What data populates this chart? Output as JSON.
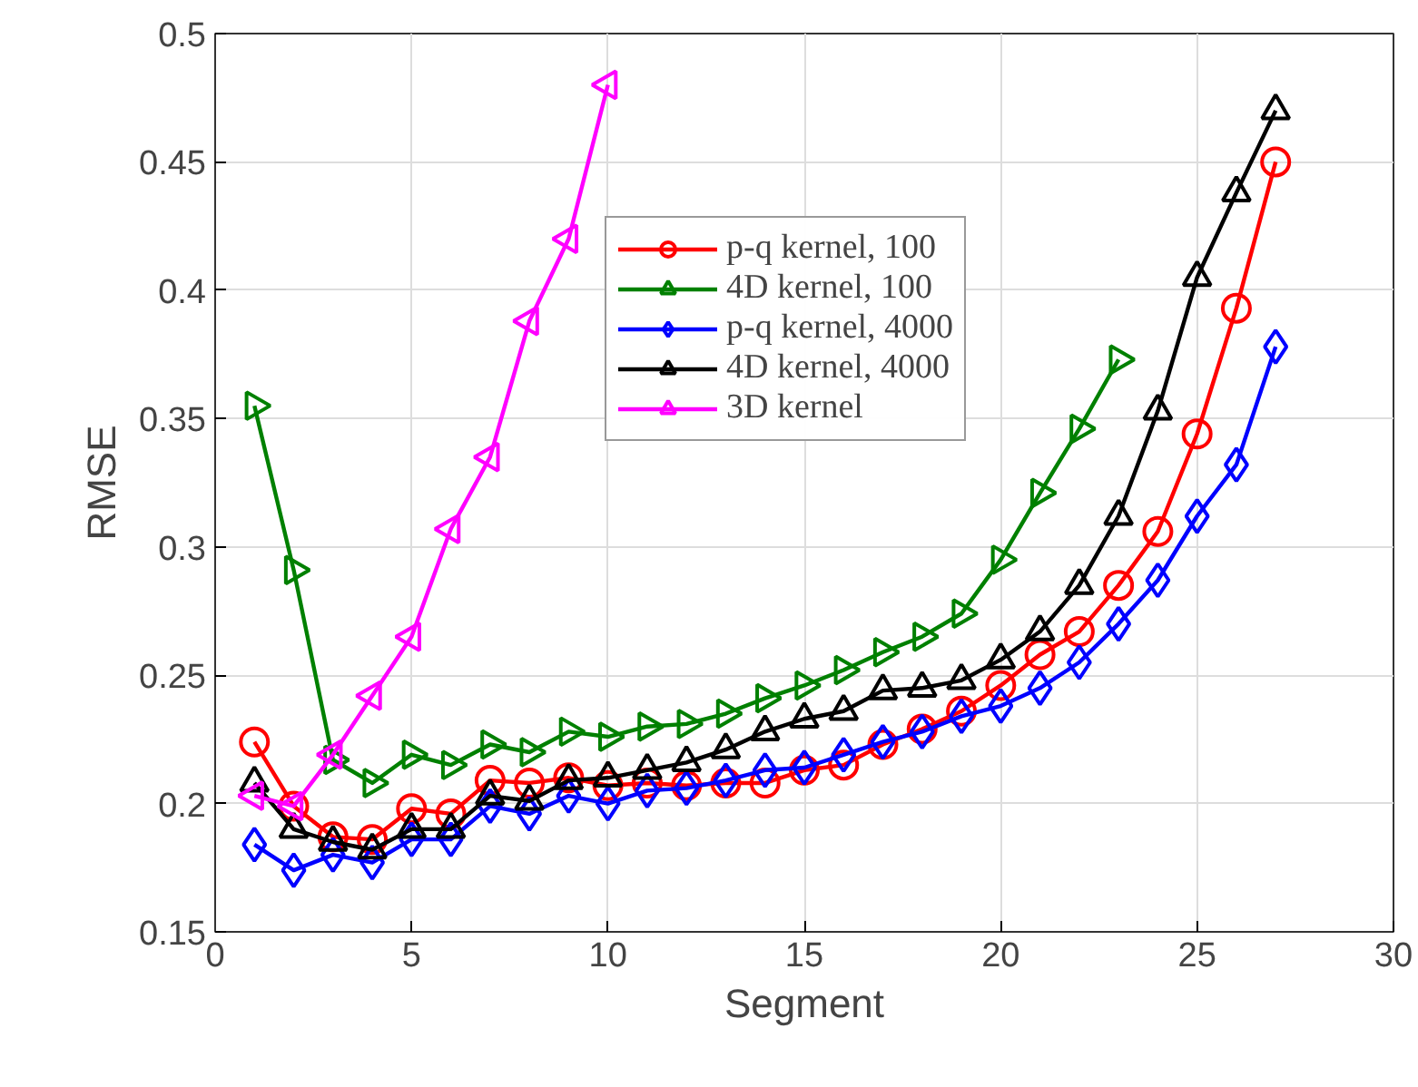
{
  "chart_data": {
    "type": "line",
    "xlabel": "Segment",
    "ylabel": "RMSE",
    "x": [
      1,
      2,
      3,
      4,
      5,
      6,
      7,
      8,
      9,
      10,
      11,
      12,
      13,
      14,
      15,
      16,
      17,
      18,
      19,
      20,
      21,
      22,
      23,
      24,
      25,
      26,
      27
    ],
    "xlim": [
      0,
      30
    ],
    "xticks": [
      0,
      5,
      10,
      15,
      20,
      25,
      30
    ],
    "ylim": [
      0.15,
      0.5
    ],
    "yticks": [
      0.15,
      0.2,
      0.25,
      0.3,
      0.35,
      0.4,
      0.45,
      0.5
    ],
    "grid": true,
    "legend": "top",
    "line_style": "solid",
    "series": [
      {
        "name": "p-q kernel, 100",
        "color": "#ff0000",
        "marker": "circle",
        "values": [
          0.224,
          0.199,
          0.187,
          0.186,
          0.198,
          0.196,
          0.209,
          0.208,
          0.21,
          0.207,
          0.208,
          0.207,
          0.208,
          0.208,
          0.213,
          0.215,
          0.223,
          0.229,
          0.236,
          0.246,
          0.258,
          0.267,
          0.285,
          0.306,
          0.344,
          0.393,
          0.45
        ]
      },
      {
        "name": "4D kernel, 100",
        "color": "#008000",
        "marker": "triangle-right",
        "values": [
          0.355,
          0.291,
          0.217,
          0.208,
          0.219,
          0.215,
          0.223,
          0.22,
          0.228,
          0.226,
          0.23,
          0.231,
          0.235,
          0.241,
          0.246,
          0.252,
          0.259,
          0.265,
          0.274,
          0.295,
          0.321,
          0.346,
          0.373,
          null,
          null,
          null,
          null
        ]
      },
      {
        "name": "p-q kernel, 4000",
        "color": "#0000ff",
        "marker": "diamond",
        "values": [
          0.184,
          0.174,
          0.18,
          0.177,
          0.186,
          0.186,
          0.199,
          0.196,
          0.203,
          0.2,
          0.205,
          0.206,
          0.209,
          0.213,
          0.214,
          0.219,
          0.224,
          0.228,
          0.234,
          0.238,
          0.245,
          0.255,
          0.27,
          0.287,
          0.312,
          0.332,
          0.378
        ]
      },
      {
        "name": "4D kernel, 4000",
        "color": "#000000",
        "marker": "triangle",
        "values": [
          0.208,
          0.19,
          0.185,
          0.182,
          0.19,
          0.19,
          0.203,
          0.201,
          0.209,
          0.21,
          0.213,
          0.216,
          0.221,
          0.228,
          0.233,
          0.236,
          0.244,
          0.245,
          0.248,
          0.256,
          0.267,
          0.285,
          0.312,
          0.353,
          0.405,
          0.438,
          0.47
        ]
      },
      {
        "name": "3D kernel",
        "color": "#ff00ff",
        "marker": "triangle-left",
        "values": [
          0.203,
          0.199,
          0.219,
          0.242,
          0.265,
          0.307,
          0.335,
          0.388,
          0.42,
          0.48,
          null,
          null,
          null,
          null,
          null,
          null,
          null,
          null,
          null,
          null,
          null,
          null,
          null,
          null,
          null,
          null,
          null
        ]
      }
    ]
  }
}
